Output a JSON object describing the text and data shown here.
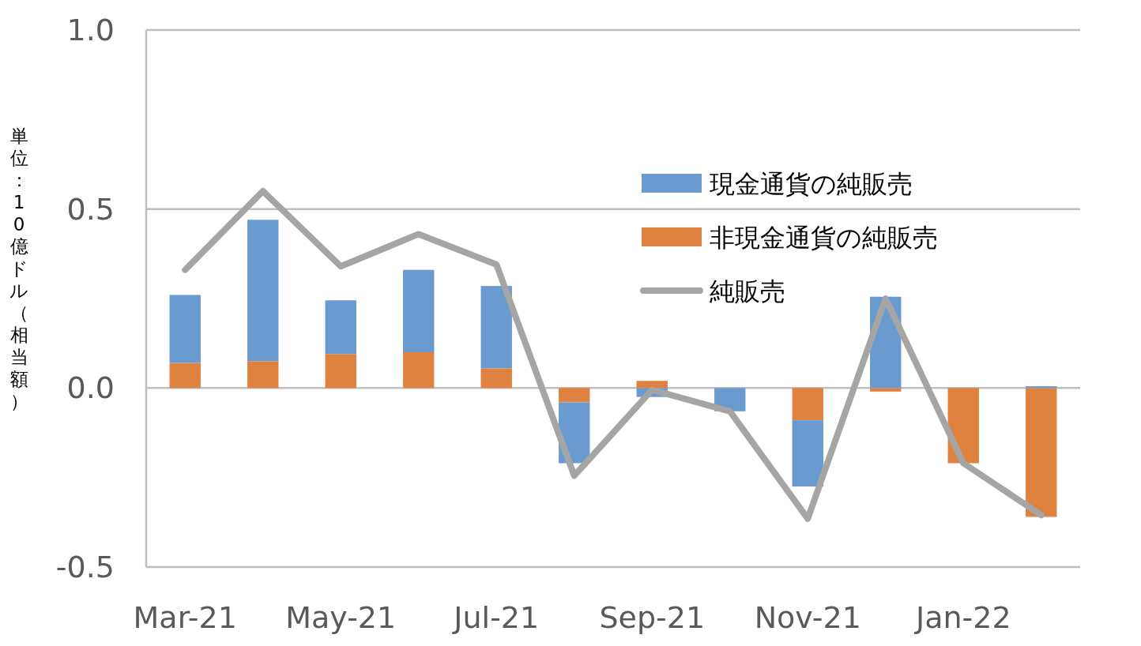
{
  "chart_data": {
    "type": "bar",
    "ylabel": "単位：10億ドル（相当額）",
    "categories": [
      "Mar-21",
      null,
      "May-21",
      null,
      "Jul-21",
      null,
      "Sep-21",
      null,
      "Nov-21",
      null,
      "Jan-22",
      null
    ],
    "stacked": true,
    "ylim": [
      -0.5,
      1.0
    ],
    "yticks": [
      {
        "value": -0.5,
        "label": "-0.5"
      },
      {
        "value": 0,
        "label": "0.0"
      },
      {
        "value": 0.5,
        "label": "0.5"
      },
      {
        "value": 1,
        "label": "1.0"
      }
    ],
    "grid": "y",
    "legend": "right",
    "series": [
      {
        "name": "非現金通貨の純販売",
        "color": "#e0823f",
        "values": [
          0.07,
          0.075,
          0.095,
          0.1,
          0.055,
          -0.04,
          0.02,
          0,
          -0.09,
          -0.01,
          -0.21,
          -0.36
        ]
      },
      {
        "name": "現金通貨の純販売",
        "color": "#6a9bd0",
        "values": [
          0.19,
          0.395,
          0.15,
          0.23,
          0.23,
          -0.17,
          -0.025,
          -0.065,
          -0.185,
          0.255,
          0,
          0.005
        ]
      },
      {
        "name": "純販売",
        "type": "line",
        "color": "#a5a5a5",
        "values": [
          0.33,
          0.55,
          0.34,
          0.43,
          0.345,
          -0.245,
          -0.005,
          -0.065,
          -0.365,
          0.25,
          -0.21,
          -0.355
        ]
      }
    ]
  }
}
